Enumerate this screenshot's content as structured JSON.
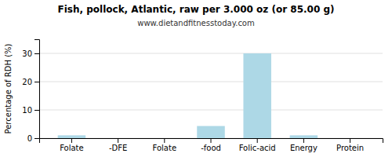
{
  "chart_data": {
    "type": "bar",
    "title": "Fish, pollock, Atlantic, raw per 3.000 oz (or 85.00 g)",
    "subtitle": "www.dietandfitnesstoday.com",
    "categories": [
      "Folate",
      "-DFE",
      "Folate",
      "-food",
      "Folic-acid",
      "Energy",
      "Protein"
    ],
    "values": [
      1,
      0,
      0,
      4.3,
      30,
      1,
      0
    ],
    "color": "#add8e6",
    "ylabel": "Percentage of RDH (%)",
    "ylim": [
      0,
      35
    ],
    "yticks": [
      0,
      10,
      20,
      30
    ],
    "grid": true
  }
}
